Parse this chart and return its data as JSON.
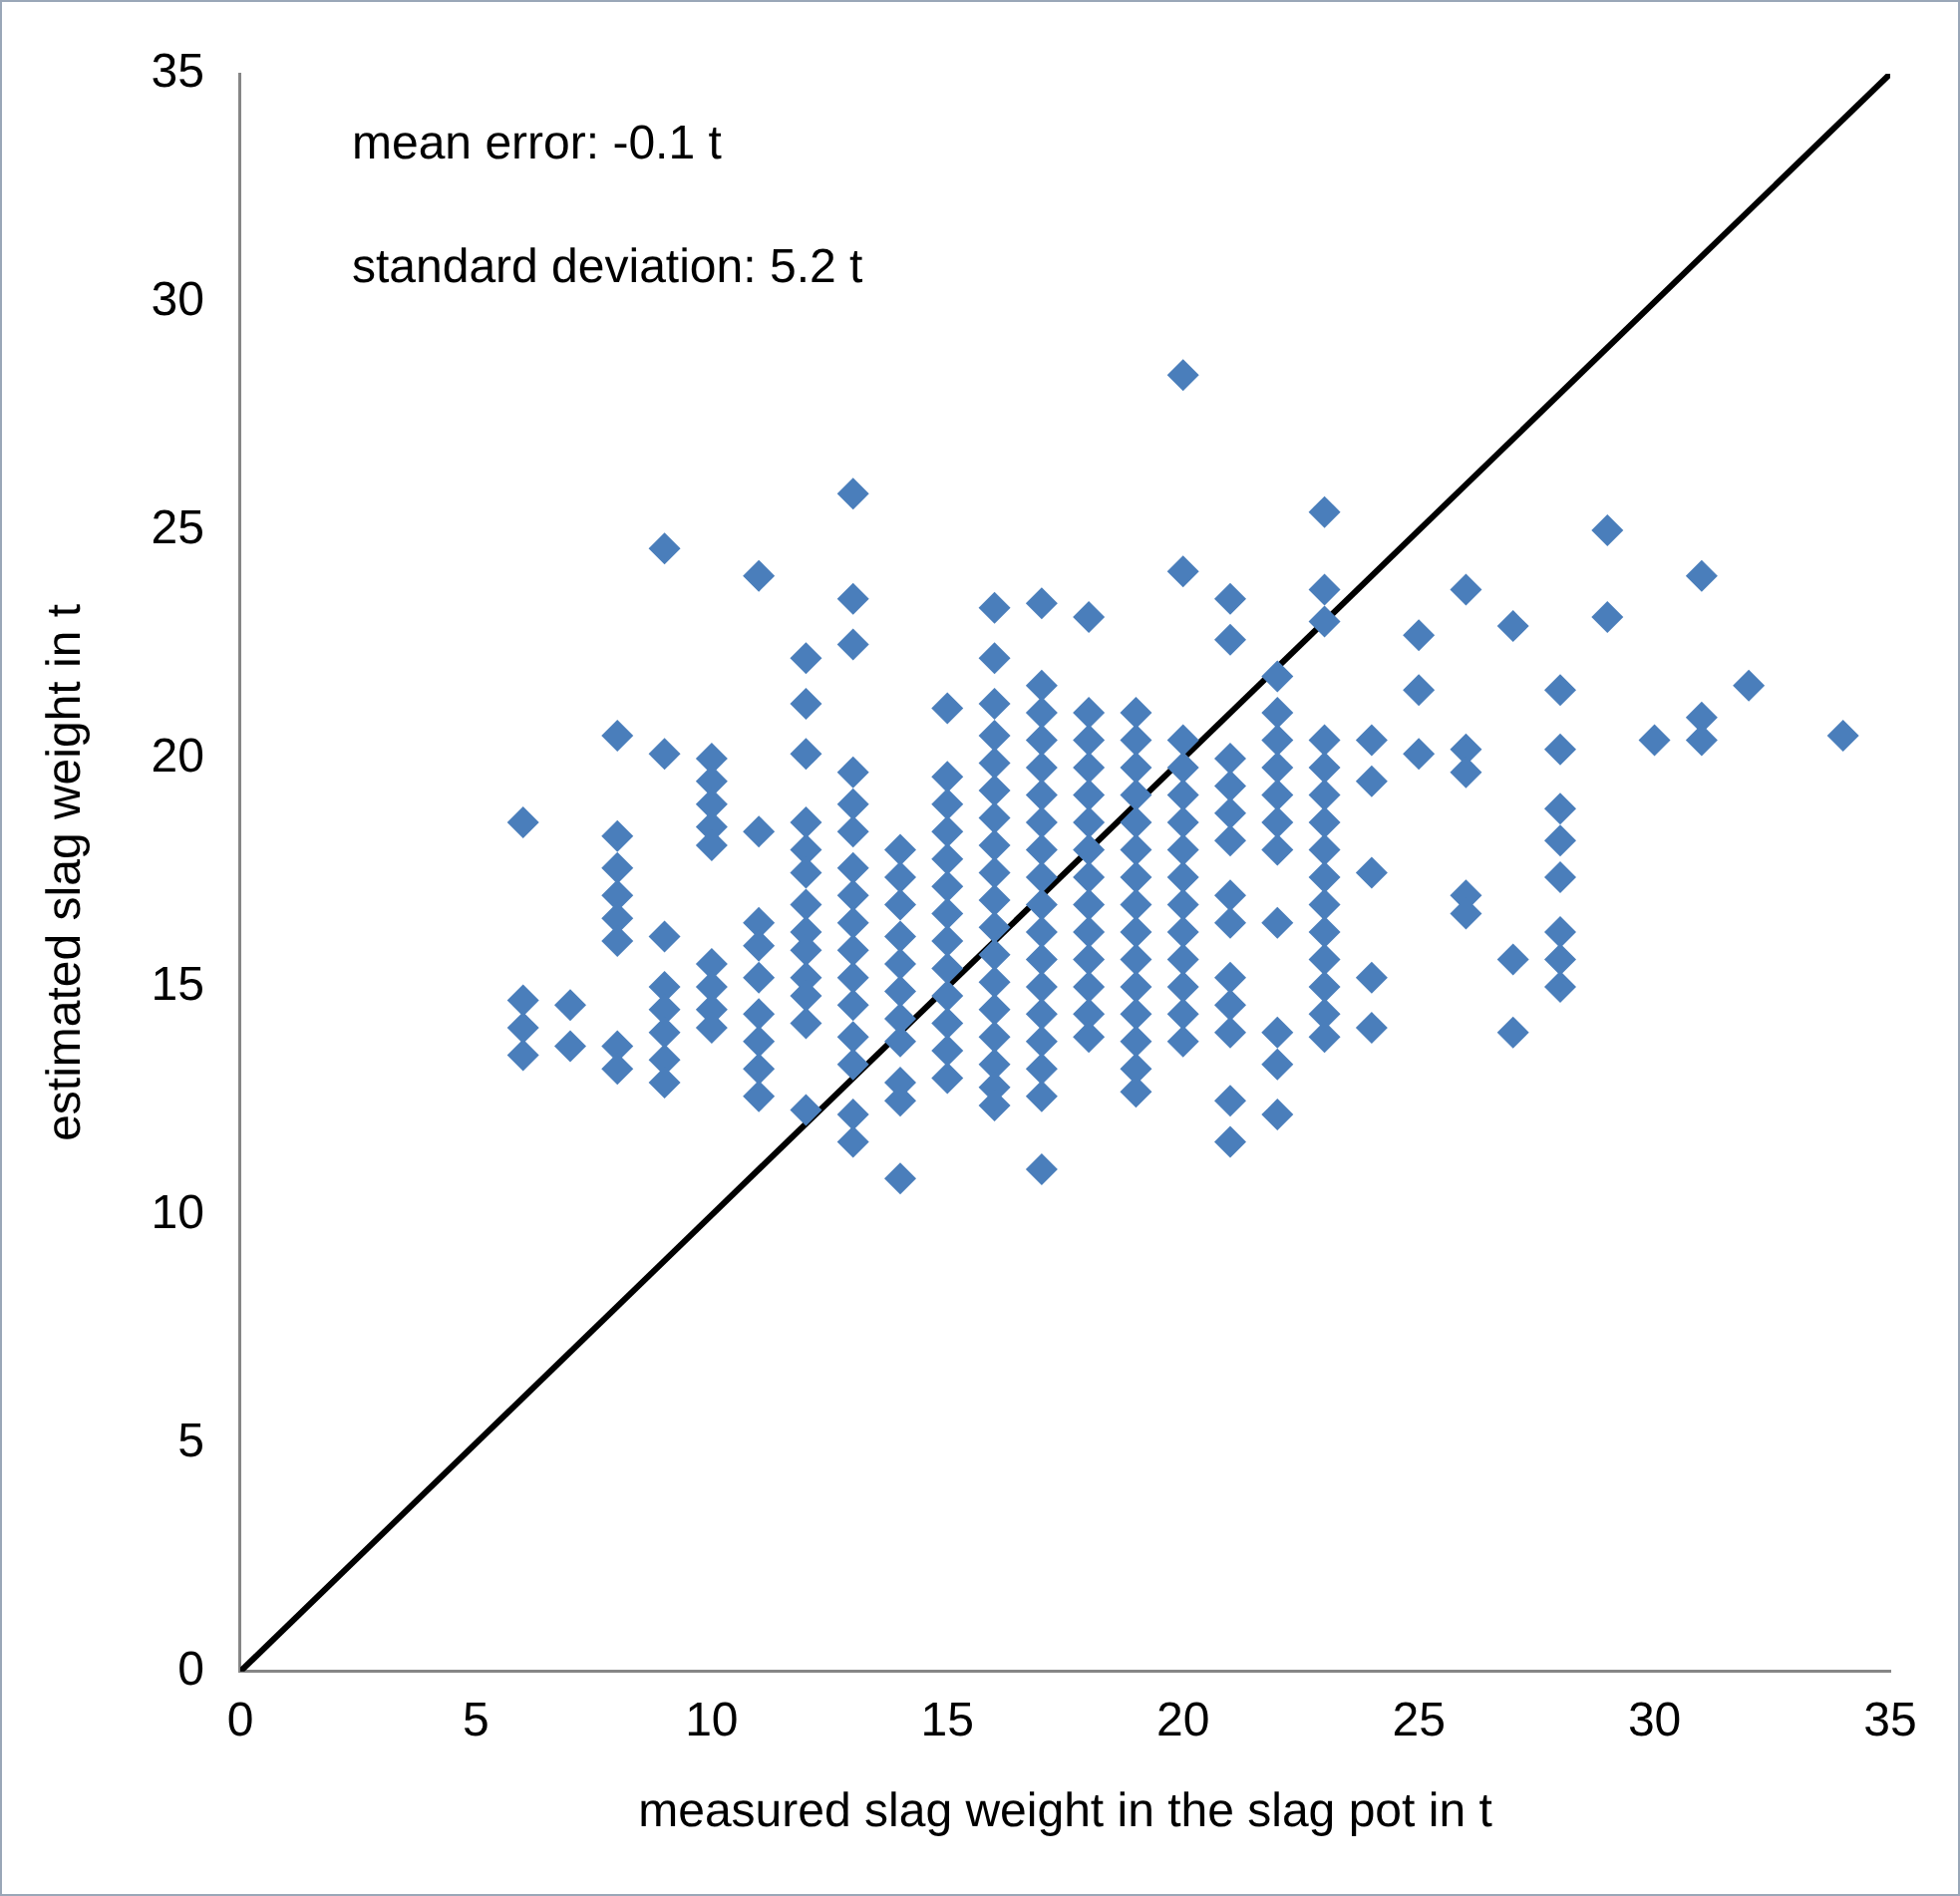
{
  "chart_data": {
    "type": "scatter",
    "xlabel": "measured slag weight in the slag pot in t",
    "ylabel": "estimated slag weight in t",
    "annotations": [
      "mean error: -0.1 t",
      "standard deviation: 5.2 t"
    ],
    "xlim": [
      0,
      35
    ],
    "xticks": [
      0,
      5,
      10,
      15,
      20,
      25,
      30,
      35
    ],
    "ylim": [
      0,
      35
    ],
    "yticks": [
      0,
      5,
      10,
      15,
      20,
      25,
      30,
      35
    ],
    "grid": false,
    "legend": false,
    "marker": "diamond",
    "series": [
      {
        "color": "#4a7ebb",
        "x": [
          6,
          6,
          6,
          6,
          7,
          7,
          8,
          8,
          8,
          8,
          8,
          8,
          8,
          8,
          9,
          9,
          9,
          9,
          9,
          9,
          9,
          9,
          10,
          10,
          10,
          10,
          10,
          10,
          10,
          10,
          10,
          11,
          11,
          11,
          11,
          11,
          11,
          11,
          11,
          11,
          12,
          12,
          12,
          12,
          12,
          12,
          12,
          12,
          12,
          12,
          12,
          12,
          12,
          13,
          13,
          13,
          13,
          13,
          13,
          13,
          13,
          13,
          13,
          13,
          13,
          13,
          13,
          13,
          13,
          14,
          14,
          14,
          14,
          14,
          14,
          14,
          14,
          14,
          14,
          14,
          15,
          15,
          15,
          15,
          15,
          15,
          15,
          15,
          15,
          15,
          15,
          15,
          15,
          16,
          16,
          16,
          16,
          16,
          16,
          16,
          16,
          16,
          16,
          16,
          16,
          16,
          16,
          16,
          16,
          16,
          16,
          17,
          17,
          17,
          17,
          17,
          17,
          17,
          17,
          17,
          17,
          17,
          17,
          17,
          17,
          17,
          17,
          17,
          17,
          18,
          18,
          18,
          18,
          18,
          18,
          18,
          18,
          18,
          18,
          18,
          18,
          18,
          18,
          19,
          19,
          19,
          19,
          19,
          19,
          19,
          19,
          19,
          19,
          19,
          19,
          19,
          19,
          19,
          20,
          20,
          20,
          20,
          20,
          20,
          20,
          20,
          20,
          20,
          20,
          20,
          20,
          20,
          21,
          21,
          21,
          21,
          21,
          21,
          21,
          21,
          21,
          21,
          21,
          21,
          21,
          22,
          22,
          22,
          22,
          22,
          22,
          22,
          22,
          22,
          22,
          22,
          23,
          23,
          23,
          23,
          23,
          23,
          23,
          23,
          23,
          23,
          23,
          23,
          23,
          23,
          23,
          24,
          24,
          24,
          24,
          24,
          25,
          25,
          25,
          26,
          26,
          26,
          26,
          26,
          27,
          27,
          27,
          28,
          28,
          28,
          28,
          28,
          28,
          28,
          28,
          29,
          29,
          30,
          31,
          31,
          31,
          32,
          34
        ],
        "values": [
          18.6,
          14.7,
          14.1,
          13.5,
          14.6,
          13.7,
          20.5,
          18.3,
          17.6,
          17.0,
          16.5,
          16.0,
          13.7,
          13.2,
          24.6,
          20.1,
          16.1,
          15.0,
          14.5,
          14.0,
          13.4,
          12.9,
          20.0,
          19.5,
          19.0,
          18.5,
          18.1,
          15.5,
          15.0,
          14.5,
          14.1,
          24.0,
          18.4,
          16.4,
          15.9,
          15.2,
          14.4,
          13.8,
          13.2,
          12.6,
          22.2,
          21.2,
          20.1,
          18.6,
          18.0,
          17.5,
          16.8,
          16.2,
          15.8,
          15.2,
          14.8,
          14.2,
          12.3,
          25.8,
          23.5,
          22.5,
          19.7,
          19.0,
          18.4,
          17.6,
          17.0,
          16.4,
          15.8,
          15.2,
          14.6,
          13.9,
          13.3,
          12.2,
          11.6,
          18.0,
          17.4,
          16.8,
          16.1,
          15.5,
          14.9,
          14.3,
          13.8,
          12.9,
          12.5,
          10.8,
          21.1,
          19.6,
          19.0,
          18.4,
          17.8,
          17.2,
          16.6,
          16.0,
          15.4,
          14.8,
          14.2,
          13.6,
          13.0,
          23.3,
          22.2,
          21.2,
          20.5,
          19.9,
          19.3,
          18.7,
          18.1,
          17.5,
          16.9,
          16.3,
          15.7,
          15.1,
          14.5,
          13.9,
          13.3,
          12.8,
          12.4,
          23.4,
          21.6,
          21.0,
          20.4,
          19.8,
          19.2,
          18.6,
          18.0,
          17.4,
          16.8,
          16.2,
          15.6,
          15.0,
          14.4,
          13.8,
          13.2,
          12.6,
          11.0,
          23.1,
          21.0,
          20.4,
          19.8,
          19.2,
          18.6,
          18.0,
          17.4,
          16.8,
          16.2,
          15.6,
          15.0,
          14.4,
          13.9,
          21.0,
          20.4,
          19.8,
          19.2,
          18.6,
          18.0,
          17.4,
          16.8,
          16.2,
          15.6,
          15.0,
          14.4,
          13.8,
          13.2,
          12.7,
          28.4,
          24.1,
          20.4,
          19.8,
          19.2,
          18.6,
          18.0,
          17.4,
          16.8,
          16.2,
          15.6,
          15.0,
          14.4,
          13.8,
          23.5,
          22.6,
          20.0,
          19.4,
          18.8,
          18.2,
          17.0,
          16.4,
          15.2,
          14.6,
          14.0,
          12.5,
          11.6,
          21.8,
          21.0,
          20.4,
          19.8,
          19.2,
          18.6,
          18.0,
          16.4,
          14.0,
          13.3,
          12.2,
          25.4,
          23.7,
          23.0,
          20.4,
          19.8,
          19.2,
          18.6,
          18.0,
          17.4,
          16.8,
          16.2,
          15.6,
          15.0,
          14.4,
          13.9,
          20.4,
          19.5,
          17.5,
          15.2,
          14.1,
          22.7,
          21.5,
          20.1,
          23.7,
          20.2,
          19.7,
          17.0,
          16.6,
          22.9,
          15.6,
          14.0,
          21.5,
          20.2,
          18.9,
          18.2,
          17.4,
          16.2,
          15.6,
          15.0,
          25.0,
          23.1,
          20.4,
          24.0,
          20.9,
          20.4,
          21.6,
          20.5
        ]
      },
      {
        "type": "line",
        "color": "#000000",
        "marker": "none",
        "x": [
          0,
          35
        ],
        "values": [
          0,
          35
        ]
      }
    ]
  }
}
